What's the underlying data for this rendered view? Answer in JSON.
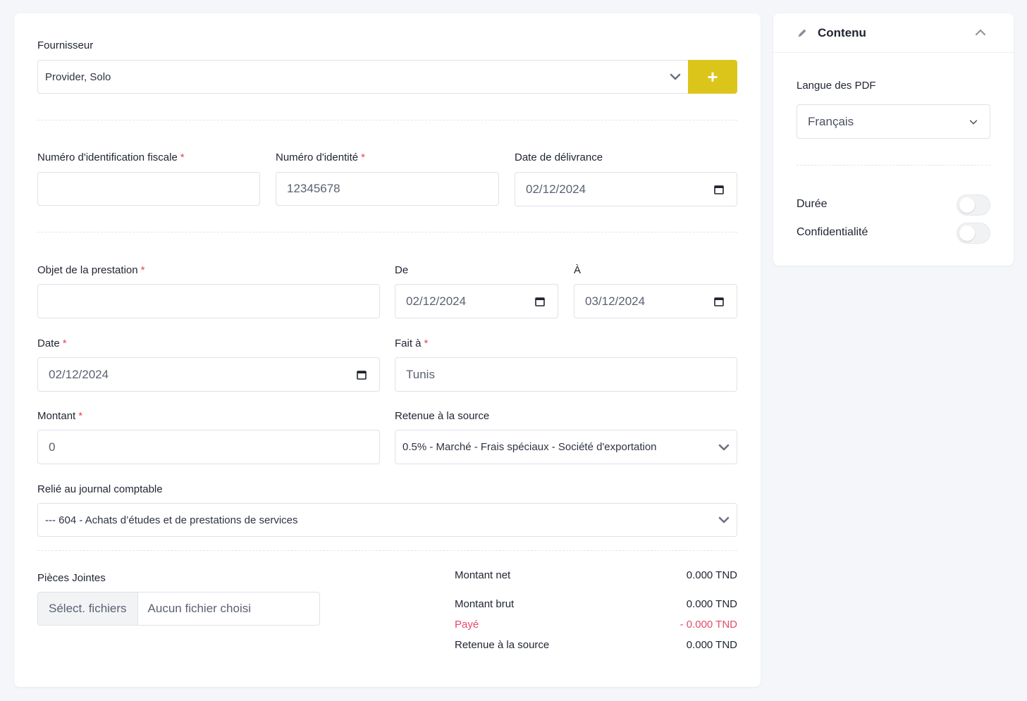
{
  "supplier": {
    "label": "Fournisseur",
    "value": "Provider, Solo",
    "add_button": "+"
  },
  "fiscal": {
    "tax_id": {
      "label": "Numéro d'identification fiscale",
      "required": "*",
      "value": ""
    },
    "identity": {
      "label": "Numéro d'identité",
      "required": "*",
      "value": "12345678"
    },
    "issue_date": {
      "label": "Date de délivrance",
      "value": "02/12/2024"
    }
  },
  "service": {
    "object": {
      "label": "Objet de la prestation",
      "required": "*",
      "value": ""
    },
    "from": {
      "label": "De",
      "value": "02/12/2024"
    },
    "to": {
      "label": "À",
      "value": "03/12/2024"
    },
    "date": {
      "label": "Date",
      "required": "*",
      "value": "02/12/2024"
    },
    "place": {
      "label": "Fait à",
      "required": "*",
      "value": "Tunis"
    },
    "amount": {
      "label": "Montant",
      "required": "*",
      "value": "0"
    },
    "withholding": {
      "label": "Retenue à la source",
      "value": "0.5% - Marché - Frais spéciaux - Société d'exportation"
    },
    "journal": {
      "label": "Relié au journal comptable",
      "value": "--- 604 - Achats d’études et de prestations de services"
    }
  },
  "attachments": {
    "label": "Pièces Jointes",
    "button": "Sélect. fichiers",
    "status": "Aucun fichier choisi"
  },
  "summary": {
    "net_label": "Montant net",
    "net_value": "0.000 TND",
    "gross_label": "Montant brut",
    "gross_value": "0.000 TND",
    "paid_label": "Payé",
    "paid_value": "- 0.000 TND",
    "withholding_label": "Retenue à la source",
    "withholding_value": "0.000 TND"
  },
  "sidebar": {
    "title": "Contenu",
    "pdf_language_label": "Langue des PDF",
    "pdf_language_value": "Français",
    "duration_label": "Durée",
    "duration_on": false,
    "confidentiality_label": "Confidentialité",
    "confidentiality_on": false
  },
  "colors": {
    "accent": "#dcc51a",
    "required": "#e5484d",
    "paid": "#e5496b"
  }
}
